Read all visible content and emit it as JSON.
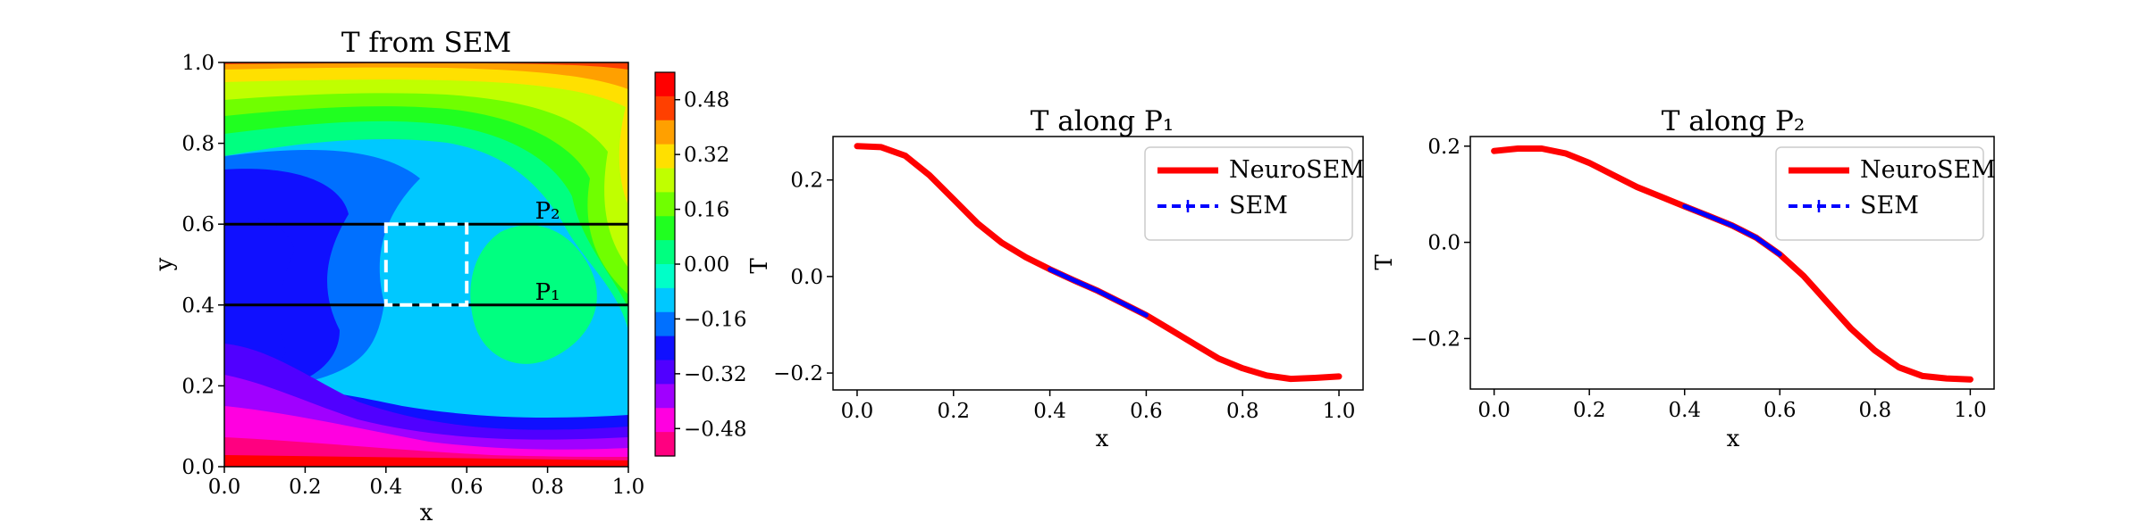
{
  "chart_data": [
    {
      "type": "contour",
      "title": "T from SEM",
      "xlabel": "x",
      "ylabel": "y",
      "xlim": [
        0.0,
        1.0
      ],
      "ylim": [
        0.0,
        1.0
      ],
      "xticks": [
        "0.0",
        "0.2",
        "0.4",
        "0.6",
        "0.8",
        "1.0"
      ],
      "yticks": [
        "0.0",
        "0.2",
        "0.4",
        "0.6",
        "0.8",
        "1.0"
      ],
      "colorbar": {
        "ticks": [
          "0.48",
          "0.32",
          "0.16",
          "0.00",
          "−0.16",
          "−0.32",
          "−0.48"
        ],
        "tick_values": [
          0.48,
          0.32,
          0.16,
          0.0,
          -0.16,
          -0.32,
          -0.48
        ],
        "range": [
          -0.56,
          0.56
        ],
        "level_colors": [
          "#ff0000",
          "#ff4000",
          "#ffa000",
          "#ffe000",
          "#c0ff00",
          "#70ff00",
          "#20ff20",
          "#00ff80",
          "#00ffc8",
          "#00c8ff",
          "#0070ff",
          "#1010ff",
          "#5000ff",
          "#a000ff",
          "#ff00e0",
          "#ff0080"
        ]
      },
      "lines": [
        {
          "name": "P₂",
          "y": 0.6
        },
        {
          "name": "P₁",
          "y": 0.4
        }
      ],
      "box": {
        "x": [
          0.4,
          0.6
        ],
        "y": [
          0.4,
          0.6
        ]
      }
    },
    {
      "type": "line",
      "title": "T along P₁",
      "xlabel": "x",
      "ylabel": "T",
      "xlim": [
        -0.05,
        1.05
      ],
      "ylim": [
        -0.235,
        0.29
      ],
      "xticks": [
        "0.0",
        "0.2",
        "0.4",
        "0.6",
        "0.8",
        "1.0"
      ],
      "yticks": [
        "−0.2",
        "0.0",
        "0.2"
      ],
      "ytick_values": [
        -0.2,
        0.0,
        0.2
      ],
      "legend": "top-right",
      "series": [
        {
          "name": "NeuroSEM",
          "color": "#ff0000",
          "style": "solid",
          "x": [
            0.0,
            0.05,
            0.1,
            0.15,
            0.2,
            0.25,
            0.3,
            0.35,
            0.4,
            0.45,
            0.5,
            0.55,
            0.6,
            0.65,
            0.7,
            0.75,
            0.8,
            0.85,
            0.9,
            0.95,
            1.0
          ],
          "y": [
            0.27,
            0.268,
            0.25,
            0.21,
            0.16,
            0.11,
            0.07,
            0.04,
            0.015,
            -0.008,
            -0.03,
            -0.055,
            -0.08,
            -0.11,
            -0.14,
            -0.17,
            -0.19,
            -0.205,
            -0.212,
            -0.21,
            -0.207
          ]
        },
        {
          "name": "SEM",
          "color": "#0000ff",
          "style": "dashed",
          "x": [
            0.4,
            0.45,
            0.5,
            0.55,
            0.6
          ],
          "y": [
            0.015,
            -0.008,
            -0.03,
            -0.055,
            -0.08
          ]
        }
      ]
    },
    {
      "type": "line",
      "title": "T along P₂",
      "xlabel": "x",
      "ylabel": "T",
      "xlim": [
        -0.05,
        1.05
      ],
      "ylim": [
        -0.305,
        0.22
      ],
      "xticks": [
        "0.0",
        "0.2",
        "0.4",
        "0.6",
        "0.8",
        "1.0"
      ],
      "yticks": [
        "−0.2",
        "0.0",
        "0.2"
      ],
      "ytick_values": [
        -0.2,
        0.0,
        0.2
      ],
      "legend": "top-right",
      "series": [
        {
          "name": "NeuroSEM",
          "color": "#ff0000",
          "style": "solid",
          "x": [
            0.0,
            0.05,
            0.1,
            0.15,
            0.2,
            0.25,
            0.3,
            0.35,
            0.4,
            0.45,
            0.5,
            0.55,
            0.6,
            0.65,
            0.7,
            0.75,
            0.8,
            0.85,
            0.9,
            0.95,
            1.0
          ],
          "y": [
            0.19,
            0.195,
            0.195,
            0.185,
            0.165,
            0.14,
            0.115,
            0.095,
            0.075,
            0.055,
            0.035,
            0.01,
            -0.025,
            -0.07,
            -0.125,
            -0.18,
            -0.225,
            -0.26,
            -0.278,
            -0.283,
            -0.285
          ]
        },
        {
          "name": "SEM",
          "color": "#0000ff",
          "style": "dashed",
          "x": [
            0.4,
            0.45,
            0.5,
            0.55,
            0.6
          ],
          "y": [
            0.075,
            0.055,
            0.035,
            0.01,
            -0.025
          ]
        }
      ]
    }
  ]
}
